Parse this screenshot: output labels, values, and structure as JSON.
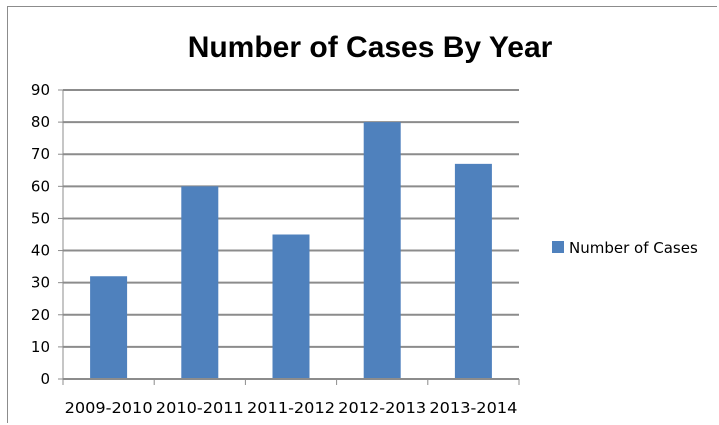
{
  "chart_data": {
    "type": "bar",
    "title": "Number of Cases By Year",
    "categories": [
      "2009-2010",
      "2010-2011",
      "2011-2012",
      "2012-2013",
      "2013-2014"
    ],
    "series": [
      {
        "name": "Number of Cases",
        "values": [
          32,
          60,
          45,
          80,
          67
        ]
      }
    ],
    "xlabel": "",
    "ylabel": "",
    "ylim": [
      0,
      90
    ],
    "yticks": [
      0,
      10,
      20,
      30,
      40,
      50,
      60,
      70,
      80,
      90
    ],
    "grid": true,
    "legend_position": "right",
    "colors": {
      "bar": "#4f81bd",
      "grid": "#8c8c8c",
      "axis": "#8c8c8c"
    }
  }
}
